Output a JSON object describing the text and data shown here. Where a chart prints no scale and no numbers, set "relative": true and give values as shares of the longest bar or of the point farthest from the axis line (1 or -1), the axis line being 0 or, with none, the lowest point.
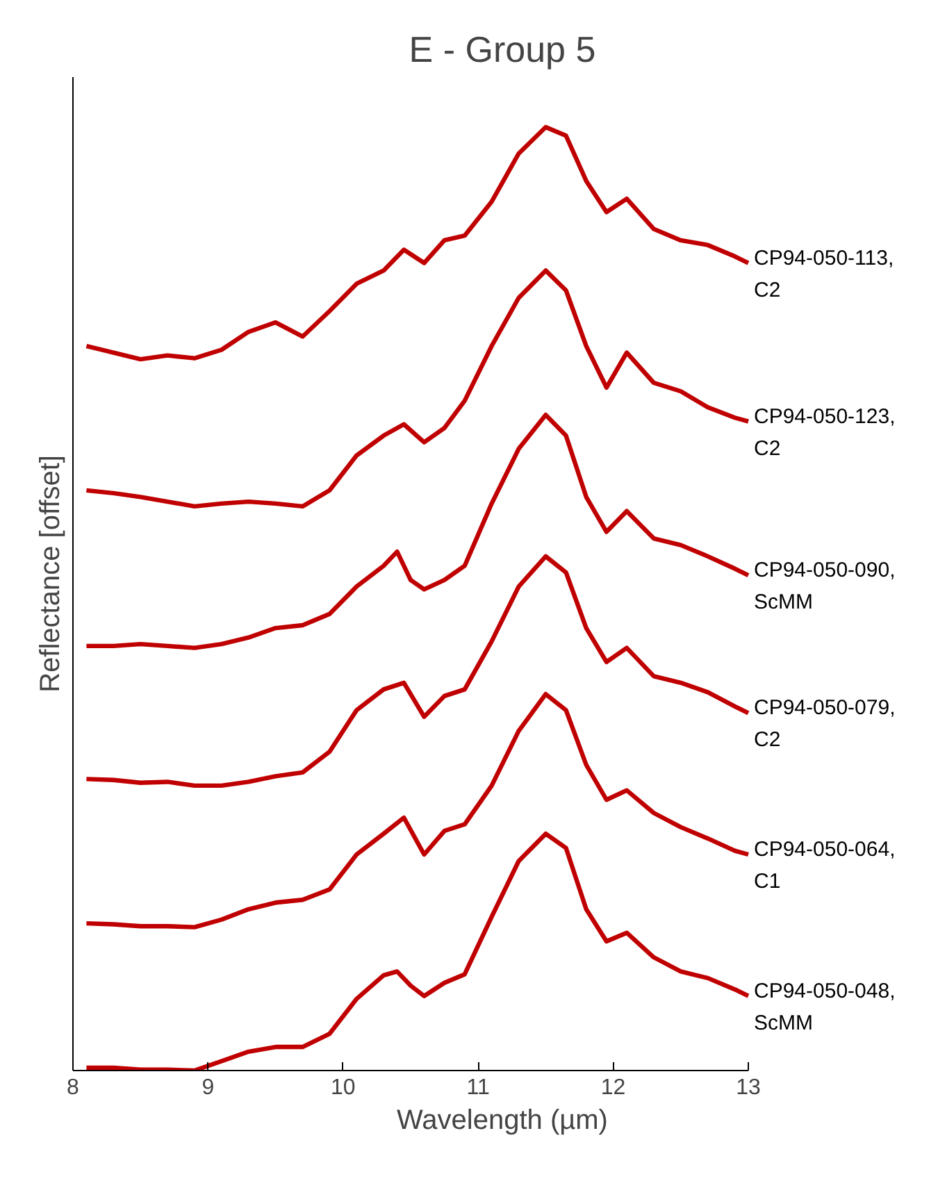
{
  "chart_data": {
    "type": "line",
    "title": "E - Group 5",
    "xlabel": "Wavelength (µm)",
    "ylabel": "Reflectance [offset]",
    "relative": true,
    "xlim": [
      8,
      13
    ],
    "xticks": [
      8,
      9,
      10,
      11,
      12,
      13
    ],
    "grid": false,
    "legend": false,
    "marker": "none",
    "line_style": "solid",
    "series": [
      {
        "name": "CP94-050-113, C2",
        "color": "#c00000",
        "x": [
          8.1,
          8.3,
          8.5,
          8.7,
          8.9,
          9.1,
          9.3,
          9.5,
          9.7,
          9.9,
          10.1,
          10.3,
          10.45,
          10.6,
          10.75,
          10.9,
          11.1,
          11.3,
          11.5,
          11.65,
          11.8,
          11.95,
          12.1,
          12.3,
          12.5,
          12.7,
          12.9,
          13.0
        ],
        "values": [
          0.768,
          0.761,
          0.754,
          0.758,
          0.755,
          0.764,
          0.783,
          0.793,
          0.778,
          0.805,
          0.834,
          0.848,
          0.87,
          0.856,
          0.88,
          0.885,
          0.921,
          0.972,
          1.0,
          0.991,
          0.943,
          0.91,
          0.924,
          0.892,
          0.88,
          0.875,
          0.863,
          0.856
        ]
      },
      {
        "name": "CP94-050-123, C2",
        "color": "#c00000",
        "x": [
          8.1,
          8.3,
          8.5,
          8.7,
          8.9,
          9.1,
          9.3,
          9.5,
          9.7,
          9.9,
          10.1,
          10.3,
          10.45,
          10.6,
          10.75,
          10.9,
          11.1,
          11.3,
          11.5,
          11.65,
          11.8,
          11.95,
          12.1,
          12.3,
          12.5,
          12.7,
          12.9,
          13.0
        ],
        "values": [
          0.615,
          0.612,
          0.608,
          0.603,
          0.598,
          0.601,
          0.603,
          0.601,
          0.598,
          0.615,
          0.652,
          0.673,
          0.685,
          0.666,
          0.681,
          0.71,
          0.768,
          0.819,
          0.848,
          0.827,
          0.768,
          0.724,
          0.761,
          0.729,
          0.72,
          0.703,
          0.692,
          0.688
        ]
      },
      {
        "name": "CP94-050-090, ScMM",
        "color": "#c00000",
        "x": [
          8.1,
          8.3,
          8.5,
          8.7,
          8.9,
          9.1,
          9.3,
          9.5,
          9.7,
          9.9,
          10.1,
          10.3,
          10.4,
          10.5,
          10.6,
          10.75,
          10.9,
          11.1,
          11.3,
          11.5,
          11.65,
          11.8,
          11.95,
          12.1,
          12.3,
          12.5,
          12.7,
          12.9,
          13.0
        ],
        "values": [
          0.45,
          0.45,
          0.452,
          0.45,
          0.448,
          0.452,
          0.459,
          0.469,
          0.472,
          0.484,
          0.513,
          0.535,
          0.55,
          0.52,
          0.51,
          0.52,
          0.535,
          0.601,
          0.659,
          0.695,
          0.673,
          0.608,
          0.571,
          0.593,
          0.564,
          0.557,
          0.545,
          0.532,
          0.525
        ]
      },
      {
        "name": "CP94-050-079, C2",
        "color": "#c00000",
        "x": [
          8.1,
          8.3,
          8.5,
          8.7,
          8.9,
          9.1,
          9.3,
          9.5,
          9.7,
          9.9,
          10.1,
          10.3,
          10.45,
          10.6,
          10.75,
          10.9,
          11.1,
          11.3,
          11.5,
          11.65,
          11.8,
          11.95,
          12.1,
          12.3,
          12.5,
          12.7,
          12.9,
          13.0
        ],
        "values": [
          0.309,
          0.308,
          0.305,
          0.306,
          0.302,
          0.302,
          0.306,
          0.312,
          0.316,
          0.338,
          0.382,
          0.404,
          0.411,
          0.375,
          0.397,
          0.404,
          0.455,
          0.513,
          0.545,
          0.528,
          0.469,
          0.433,
          0.448,
          0.418,
          0.411,
          0.401,
          0.386,
          0.379
        ]
      },
      {
        "name": "CP94-050-064, C1",
        "color": "#c00000",
        "x": [
          8.1,
          8.3,
          8.5,
          8.7,
          8.9,
          9.1,
          9.3,
          9.5,
          9.7,
          9.9,
          10.1,
          10.3,
          10.45,
          10.6,
          10.75,
          10.9,
          11.1,
          11.3,
          11.5,
          11.65,
          11.8,
          11.95,
          12.1,
          12.3,
          12.5,
          12.7,
          12.9,
          13.0
        ],
        "values": [
          0.156,
          0.155,
          0.153,
          0.153,
          0.152,
          0.16,
          0.171,
          0.178,
          0.181,
          0.192,
          0.229,
          0.251,
          0.268,
          0.229,
          0.254,
          0.261,
          0.302,
          0.36,
          0.399,
          0.382,
          0.324,
          0.287,
          0.297,
          0.273,
          0.258,
          0.246,
          0.233,
          0.229
        ]
      },
      {
        "name": "CP94-050-048, ScMM",
        "color": "#c00000",
        "x": [
          8.1,
          8.3,
          8.5,
          8.7,
          8.9,
          9.1,
          9.3,
          9.5,
          9.7,
          9.9,
          10.1,
          10.3,
          10.4,
          10.5,
          10.6,
          10.75,
          10.9,
          11.1,
          11.3,
          11.5,
          11.65,
          11.8,
          11.95,
          12.1,
          12.3,
          12.5,
          12.7,
          12.9,
          13.0
        ],
        "values": [
          0.003,
          0.003,
          0.001,
          0.001,
          0.0,
          0.01,
          0.02,
          0.025,
          0.025,
          0.039,
          0.076,
          0.101,
          0.105,
          0.09,
          0.079,
          0.093,
          0.102,
          0.163,
          0.222,
          0.251,
          0.236,
          0.171,
          0.137,
          0.146,
          0.12,
          0.105,
          0.098,
          0.086,
          0.079
        ]
      }
    ]
  }
}
